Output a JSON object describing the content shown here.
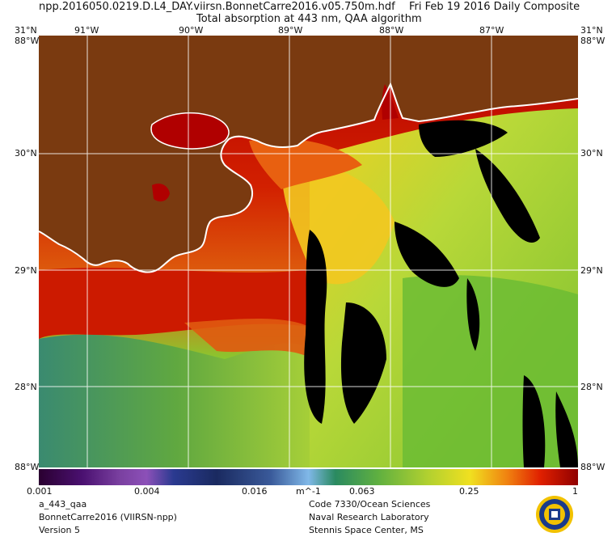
{
  "header": {
    "filename": "npp.2016050.0219.D.L4_DAY.viirsn.BonnetCarre2016.v05.750m.hdf",
    "date": "Fri Feb 19 2016 Daily Composite",
    "subtitle": "Total absorption at 443 nm, QAA algorithm"
  },
  "axes": {
    "lon_labels": [
      "91°W",
      "90°W",
      "89°W",
      "88°W",
      "87°W"
    ],
    "lat_labels": [
      "31°N",
      "30°N",
      "29°N",
      "28°N"
    ],
    "corner_labels": [
      "88°W",
      "88°W"
    ],
    "bottom_corner_labels": [
      "88°W",
      "88°W"
    ]
  },
  "colorbar": {
    "ticks": [
      "0.001",
      "0.004",
      "0.016",
      "0.063",
      "0.25",
      "1"
    ],
    "unit": "m^-1"
  },
  "footer": {
    "left": [
      "a_443_qaa",
      "BonnetCarre2016 (VIIRSN-npp)",
      "Version 5"
    ],
    "right": [
      "Code 7330/Ocean Sciences",
      "Naval Research Laboratory",
      "Stennis Space Center, MS"
    ]
  },
  "colors": {
    "land": "#7a3a10",
    "outline": "#ffffff",
    "nodata": "#000000"
  },
  "logo": {
    "name": "nrl-seal-icon"
  }
}
